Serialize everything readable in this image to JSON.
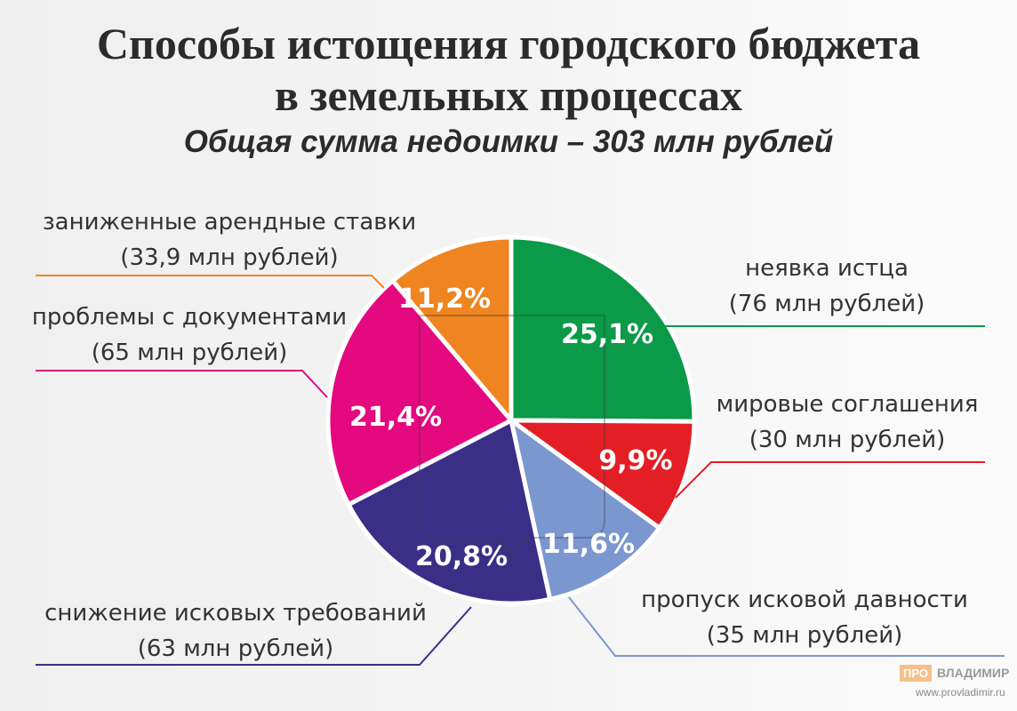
{
  "chart_data": {
    "type": "pie",
    "title": [
      "Способы истощения городского бюджета",
      "в земельных процессах"
    ],
    "subtitle": "Общая сумма недоимки – 303 млн рублей",
    "slices": [
      {
        "name": "неявка истца",
        "amount": "(76 млн рублей)",
        "value": 25.1,
        "pct_label": "25,1%",
        "color": "#0a9a48"
      },
      {
        "name": "мировые соглашения",
        "amount": "(30 млн рублей)",
        "value": 9.9,
        "pct_label": "9,9%",
        "color": "#e31e24"
      },
      {
        "name": "пропуск исковой давности",
        "amount": "(35 млн рублей)",
        "value": 11.6,
        "pct_label": "11,6%",
        "color": "#7b97d0"
      },
      {
        "name": "снижение исковых требований",
        "amount": "(63 млн рублей)",
        "value": 20.8,
        "pct_label": "20,8%",
        "color": "#3a2e86"
      },
      {
        "name": "проблемы с документами",
        "amount": "(65 млн рублей)",
        "value": 21.4,
        "pct_label": "21,4%",
        "color": "#e5097f"
      },
      {
        "name": "заниженные арендные ставки",
        "amount": "(33,9 млн рублей)",
        "value": 11.2,
        "pct_label": "11,2%",
        "color": "#ef8520"
      }
    ]
  },
  "logo": {
    "pro": "ПРО",
    "name": "ВЛАДИМИР",
    "url": "www.provladimir.ru"
  }
}
